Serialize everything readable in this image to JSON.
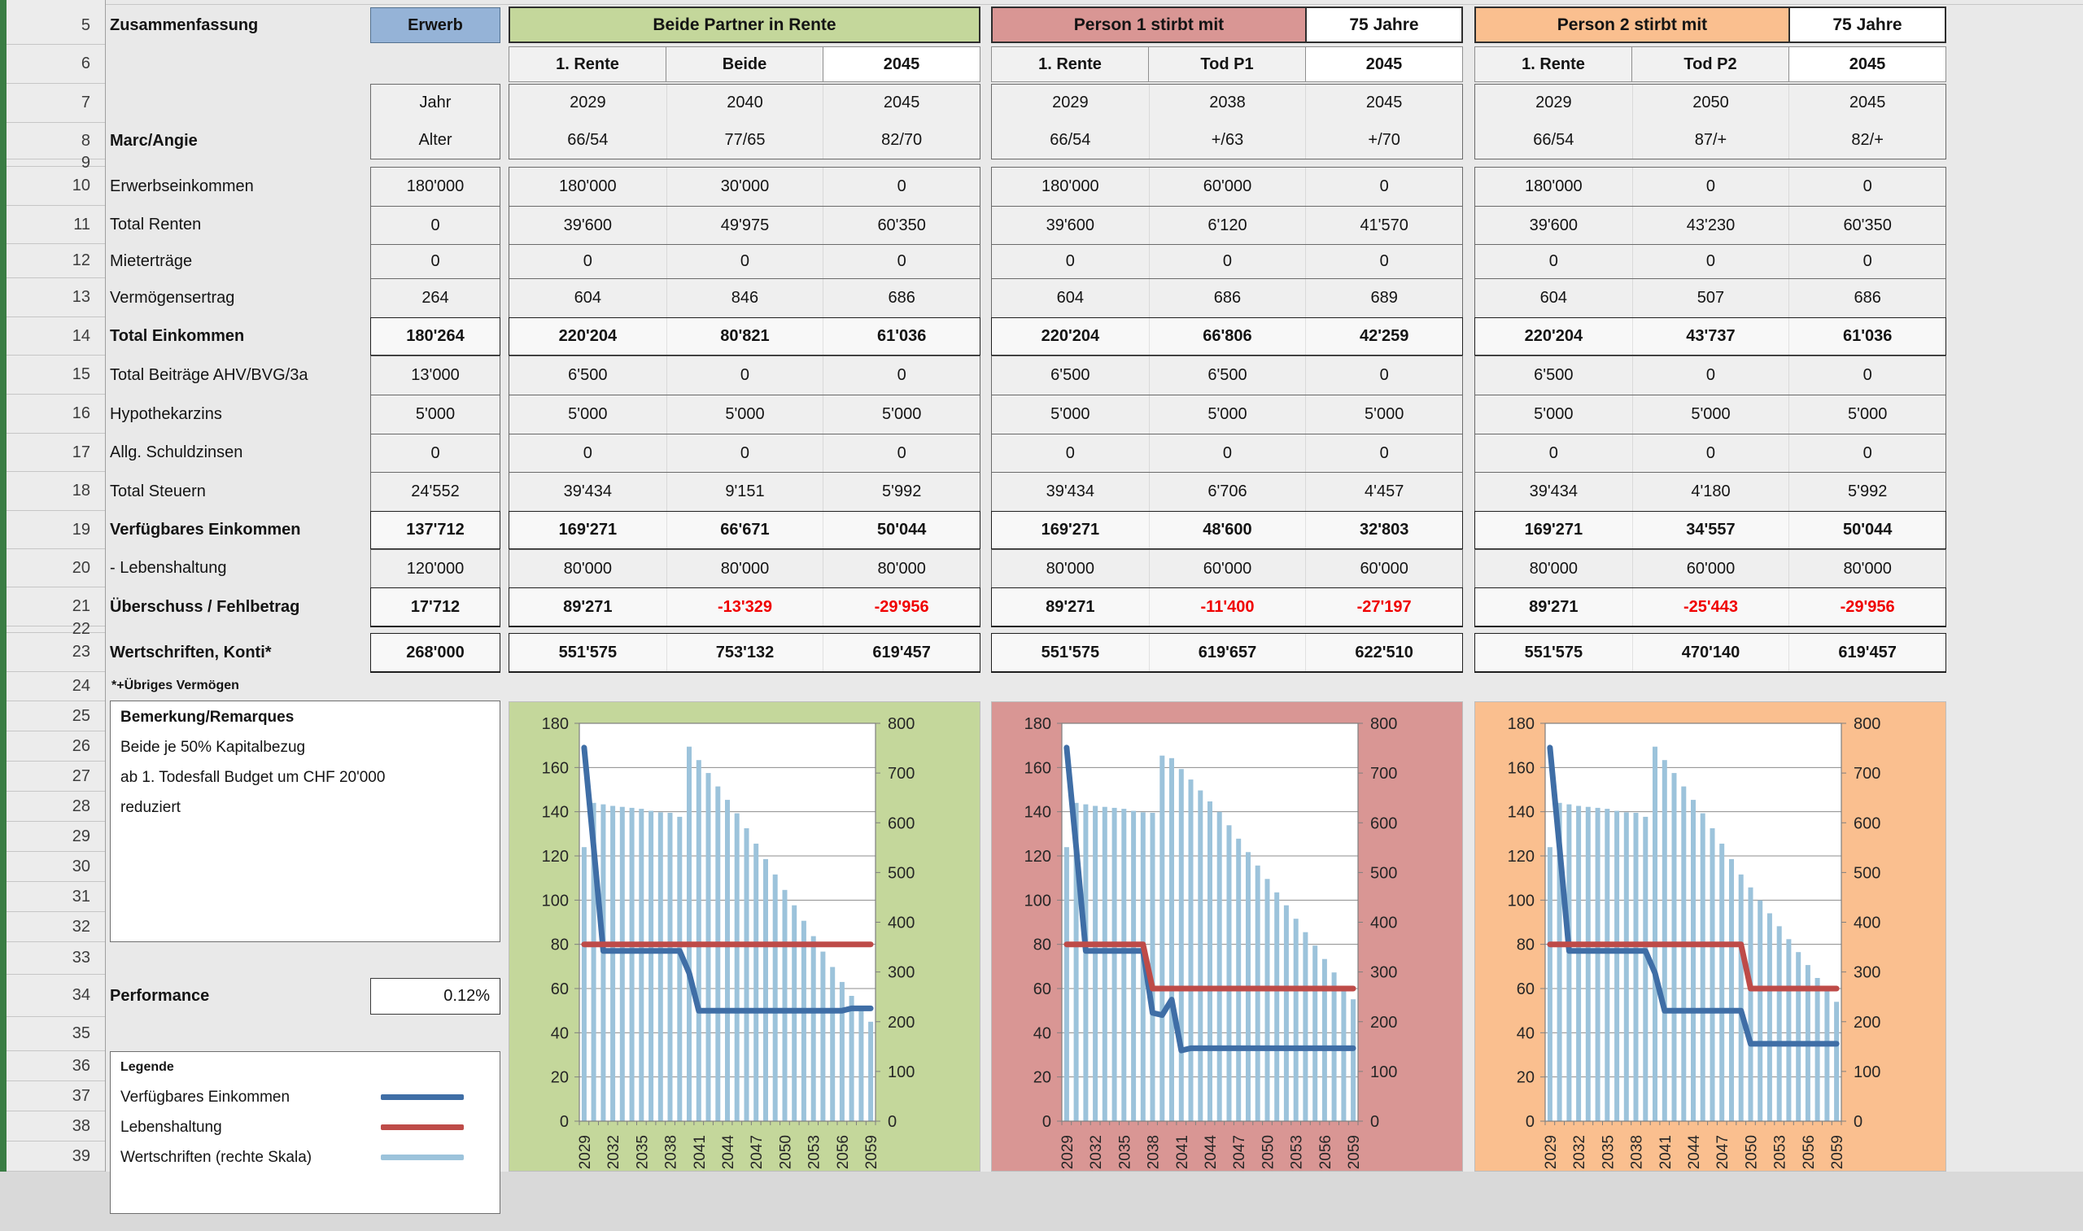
{
  "sheet": {
    "row_numbers": [
      "5",
      "6",
      "7",
      "8",
      "9",
      "10",
      "11",
      "12",
      "13",
      "14",
      "15",
      "16",
      "17",
      "18",
      "19",
      "20",
      "21",
      "22",
      "23",
      "24",
      "25",
      "26",
      "27",
      "28",
      "29",
      "30",
      "31",
      "32",
      "33",
      "34",
      "35",
      "36",
      "37",
      "38",
      "39"
    ]
  },
  "header": {
    "title": "Zusammenfassung",
    "erwerb_label": "Erwerb",
    "jahr_label": "Jahr",
    "alter_label": "Alter",
    "name_label": "Marc/Angie",
    "panels": [
      {
        "title": "Beide Partner in Rente",
        "duration": "",
        "accent": "#C4D79B",
        "columns": [
          "1. Rente",
          "Beide",
          "2045"
        ],
        "years": [
          "2029",
          "2040",
          "2045"
        ],
        "ages": [
          "66/54",
          "77/65",
          "82/70"
        ]
      },
      {
        "title": "Person 1 stirbt mit",
        "duration": "75 Jahre",
        "accent": "#D99694",
        "columns": [
          "1. Rente",
          "Tod P1",
          "2045"
        ],
        "years": [
          "2029",
          "2038",
          "2045"
        ],
        "ages": [
          "66/54",
          "+/63",
          "+/70"
        ]
      },
      {
        "title": "Person 2 stirbt mit",
        "duration": "75 Jahre",
        "accent": "#FABF8F",
        "columns": [
          "1. Rente",
          "Tod P2",
          "2045"
        ],
        "years": [
          "2029",
          "2050",
          "2045"
        ],
        "ages": [
          "66/54",
          "87/+",
          "82/+"
        ]
      }
    ]
  },
  "table": {
    "rows": [
      {
        "num": "10",
        "label": "Erwerbseinkommen",
        "bold": false,
        "erwerb": "180'000",
        "scenarios": [
          [
            "180'000",
            "30'000",
            "0"
          ],
          [
            "180'000",
            "60'000",
            "0"
          ],
          [
            "180'000",
            "0",
            "0"
          ]
        ]
      },
      {
        "num": "11",
        "label": "Total Renten",
        "bold": false,
        "erwerb": "0",
        "scenarios": [
          [
            "39'600",
            "49'975",
            "60'350"
          ],
          [
            "39'600",
            "6'120",
            "41'570"
          ],
          [
            "39'600",
            "43'230",
            "60'350"
          ]
        ]
      },
      {
        "num": "12",
        "label": "Mieterträge",
        "bold": false,
        "erwerb": "0",
        "scenarios": [
          [
            "0",
            "0",
            "0"
          ],
          [
            "0",
            "0",
            "0"
          ],
          [
            "0",
            "0",
            "0"
          ]
        ]
      },
      {
        "num": "13",
        "label": "Vermögensertrag",
        "bold": false,
        "erwerb": "264",
        "scenarios": [
          [
            "604",
            "846",
            "686"
          ],
          [
            "604",
            "686",
            "689"
          ],
          [
            "604",
            "507",
            "686"
          ]
        ]
      },
      {
        "num": "14",
        "label": "Total Einkommen",
        "bold": true,
        "erwerb": "180'264",
        "scenarios": [
          [
            "220'204",
            "80'821",
            "61'036"
          ],
          [
            "220'204",
            "66'806",
            "42'259"
          ],
          [
            "220'204",
            "43'737",
            "61'036"
          ]
        ]
      },
      {
        "num": "15",
        "label": "Total Beiträge AHV/BVG/3a",
        "bold": false,
        "erwerb": "13'000",
        "scenarios": [
          [
            "6'500",
            "0",
            "0"
          ],
          [
            "6'500",
            "6'500",
            "0"
          ],
          [
            "6'500",
            "0",
            "0"
          ]
        ]
      },
      {
        "num": "16",
        "label": "Hypothekarzins",
        "bold": false,
        "erwerb": "5'000",
        "scenarios": [
          [
            "5'000",
            "5'000",
            "5'000"
          ],
          [
            "5'000",
            "5'000",
            "5'000"
          ],
          [
            "5'000",
            "5'000",
            "5'000"
          ]
        ]
      },
      {
        "num": "17",
        "label": "Allg. Schuldzinsen",
        "bold": false,
        "erwerb": "0",
        "scenarios": [
          [
            "0",
            "0",
            "0"
          ],
          [
            "0",
            "0",
            "0"
          ],
          [
            "0",
            "0",
            "0"
          ]
        ]
      },
      {
        "num": "18",
        "label": "Total Steuern",
        "bold": false,
        "erwerb": "24'552",
        "scenarios": [
          [
            "39'434",
            "9'151",
            "5'992"
          ],
          [
            "39'434",
            "6'706",
            "4'457"
          ],
          [
            "39'434",
            "4'180",
            "5'992"
          ]
        ]
      },
      {
        "num": "19",
        "label": "Verfügbares Einkommen",
        "bold": true,
        "erwerb": "137'712",
        "scenarios": [
          [
            "169'271",
            "66'671",
            "50'044"
          ],
          [
            "169'271",
            "48'600",
            "32'803"
          ],
          [
            "169'271",
            "34'557",
            "50'044"
          ]
        ]
      },
      {
        "num": "20",
        "label": "- Lebenshaltung",
        "bold": false,
        "erwerb": "120'000",
        "scenarios": [
          [
            "80'000",
            "80'000",
            "80'000"
          ],
          [
            "80'000",
            "60'000",
            "60'000"
          ],
          [
            "80'000",
            "60'000",
            "80'000"
          ]
        ]
      },
      {
        "num": "21",
        "label": "Überschuss / Fehlbetrag",
        "bold": true,
        "erwerb": "17'712",
        "scenarios": [
          [
            "89'271",
            "-13'329",
            "-29'956"
          ],
          [
            "89'271",
            "-11'400",
            "-27'197"
          ],
          [
            "89'271",
            "-25'443",
            "-29'956"
          ]
        ]
      },
      {
        "num": "23",
        "label": "Wertschriften, Konti*",
        "bold": true,
        "erwerb": "268'000",
        "scenarios": [
          [
            "551'575",
            "753'132",
            "619'457"
          ],
          [
            "551'575",
            "619'657",
            "622'510"
          ],
          [
            "551'575",
            "470'140",
            "619'457"
          ]
        ]
      }
    ]
  },
  "footnote": "*+Übriges Vermögen",
  "bemerkung": {
    "title": "Bemerkung/Remarques",
    "lines": [
      "Beide je 50% Kapitalbezug",
      "ab 1. Todesfall Budget um CHF 20'000",
      "reduziert"
    ]
  },
  "performance": {
    "label": "Performance",
    "value": "0.12%"
  },
  "legende": {
    "title": "Legende",
    "items": [
      {
        "label": "Verfügbares Einkommen",
        "color": "#3F6EA6"
      },
      {
        "label": "Lebenshaltung",
        "color": "#BE4B48"
      },
      {
        "label": "Wertschriften (rechte Skala)",
        "color": "#9CC3DB"
      }
    ]
  },
  "chart_data": [
    {
      "type": "bar",
      "panel": "Beide Partner in Rente",
      "bg": "#C4D79B",
      "x": [
        2029,
        2030,
        2031,
        2032,
        2033,
        2034,
        2035,
        2036,
        2037,
        2038,
        2039,
        2040,
        2041,
        2042,
        2043,
        2044,
        2045,
        2046,
        2047,
        2048,
        2049,
        2050,
        2051,
        2052,
        2053,
        2054,
        2055,
        2056,
        2057,
        2058,
        2059
      ],
      "x_tick_labels": [
        "2029",
        "2032",
        "2035",
        "2038",
        "2041",
        "2044",
        "2047",
        "2050",
        "2053",
        "2056",
        "2059"
      ],
      "left_axis": {
        "min": 0,
        "max": 180,
        "step": 20
      },
      "right_axis": {
        "min": 0,
        "max": 800,
        "step": 100
      },
      "grid": true,
      "series": [
        {
          "name": "Wertschriften (rechte Skala)",
          "type": "bar",
          "axis": "right",
          "color": "#9CC3DB",
          "values": [
            551,
            640,
            637,
            634,
            632,
            630,
            628,
            624,
            621,
            620,
            612,
            753,
            726,
            700,
            673,
            646,
            619,
            589,
            558,
            527,
            496,
            465,
            434,
            403,
            372,
            341,
            310,
            280,
            252,
            225,
            200
          ]
        },
        {
          "name": "Verfügbares Einkommen",
          "type": "line",
          "axis": "left",
          "color": "#3F6EA6",
          "values": [
            169,
            124,
            77,
            77,
            77,
            77,
            77,
            77,
            77,
            77,
            77,
            67,
            50,
            50,
            50,
            50,
            50,
            50,
            50,
            50,
            50,
            50,
            50,
            50,
            50,
            50,
            50,
            50,
            51,
            51,
            51
          ]
        },
        {
          "name": "Lebenshaltung",
          "type": "line",
          "axis": "left",
          "color": "#BE4B48",
          "values": [
            80,
            80,
            80,
            80,
            80,
            80,
            80,
            80,
            80,
            80,
            80,
            80,
            80,
            80,
            80,
            80,
            80,
            80,
            80,
            80,
            80,
            80,
            80,
            80,
            80,
            80,
            80,
            80,
            80,
            80,
            80
          ]
        }
      ]
    },
    {
      "type": "bar",
      "panel": "Person 1 stirbt mit 75 Jahre",
      "bg": "#D99694",
      "x": [
        2029,
        2030,
        2031,
        2032,
        2033,
        2034,
        2035,
        2036,
        2037,
        2038,
        2039,
        2040,
        2041,
        2042,
        2043,
        2044,
        2045,
        2046,
        2047,
        2048,
        2049,
        2050,
        2051,
        2052,
        2053,
        2054,
        2055,
        2056,
        2057,
        2058,
        2059
      ],
      "x_tick_labels": [
        "2029",
        "2032",
        "2035",
        "2038",
        "2041",
        "2044",
        "2047",
        "2050",
        "2053",
        "2056",
        "2059"
      ],
      "left_axis": {
        "min": 0,
        "max": 180,
        "step": 20
      },
      "right_axis": {
        "min": 0,
        "max": 800,
        "step": 100
      },
      "grid": true,
      "series": [
        {
          "name": "Wertschriften (rechte Skala)",
          "type": "bar",
          "axis": "right",
          "color": "#9CC3DB",
          "values": [
            551,
            640,
            637,
            634,
            632,
            630,
            628,
            624,
            621,
            620,
            735,
            730,
            708,
            687,
            665,
            643,
            622,
            595,
            568,
            541,
            514,
            487,
            460,
            434,
            407,
            380,
            353,
            326,
            299,
            272,
            245
          ]
        },
        {
          "name": "Verfügbares Einkommen",
          "type": "line",
          "axis": "left",
          "color": "#3F6EA6",
          "values": [
            169,
            124,
            77,
            77,
            77,
            77,
            77,
            77,
            77,
            49,
            48,
            55,
            32,
            33,
            33,
            33,
            33,
            33,
            33,
            33,
            33,
            33,
            33,
            33,
            33,
            33,
            33,
            33,
            33,
            33,
            33
          ]
        },
        {
          "name": "Lebenshaltung",
          "type": "line",
          "axis": "left",
          "color": "#BE4B48",
          "values": [
            80,
            80,
            80,
            80,
            80,
            80,
            80,
            80,
            80,
            60,
            60,
            60,
            60,
            60,
            60,
            60,
            60,
            60,
            60,
            60,
            60,
            60,
            60,
            60,
            60,
            60,
            60,
            60,
            60,
            60,
            60
          ]
        }
      ]
    },
    {
      "type": "bar",
      "panel": "Person 2 stirbt mit 75 Jahre",
      "bg": "#FABF8F",
      "x": [
        2029,
        2030,
        2031,
        2032,
        2033,
        2034,
        2035,
        2036,
        2037,
        2038,
        2039,
        2040,
        2041,
        2042,
        2043,
        2044,
        2045,
        2046,
        2047,
        2048,
        2049,
        2050,
        2051,
        2052,
        2053,
        2054,
        2055,
        2056,
        2057,
        2058,
        2059
      ],
      "x_tick_labels": [
        "2029",
        "2032",
        "2035",
        "2038",
        "2041",
        "2044",
        "2047",
        "2050",
        "2053",
        "2056",
        "2059"
      ],
      "left_axis": {
        "min": 0,
        "max": 180,
        "step": 20
      },
      "right_axis": {
        "min": 0,
        "max": 800,
        "step": 100
      },
      "grid": true,
      "series": [
        {
          "name": "Wertschriften (rechte Skala)",
          "type": "bar",
          "axis": "right",
          "color": "#9CC3DB",
          "values": [
            551,
            640,
            637,
            634,
            632,
            630,
            628,
            624,
            621,
            620,
            612,
            753,
            726,
            700,
            673,
            646,
            619,
            589,
            558,
            527,
            496,
            470,
            444,
            418,
            392,
            366,
            340,
            314,
            288,
            263,
            240
          ]
        },
        {
          "name": "Verfügbares Einkommen",
          "type": "line",
          "axis": "left",
          "color": "#3F6EA6",
          "values": [
            169,
            124,
            77,
            77,
            77,
            77,
            77,
            77,
            77,
            77,
            77,
            67,
            50,
            50,
            50,
            50,
            50,
            50,
            50,
            50,
            50,
            35,
            35,
            35,
            35,
            35,
            35,
            35,
            35,
            35,
            35
          ]
        },
        {
          "name": "Lebenshaltung",
          "type": "line",
          "axis": "left",
          "color": "#BE4B48",
          "values": [
            80,
            80,
            80,
            80,
            80,
            80,
            80,
            80,
            80,
            80,
            80,
            80,
            80,
            80,
            80,
            80,
            80,
            80,
            80,
            80,
            80,
            60,
            60,
            60,
            60,
            60,
            60,
            60,
            60,
            60,
            60
          ]
        }
      ]
    }
  ]
}
